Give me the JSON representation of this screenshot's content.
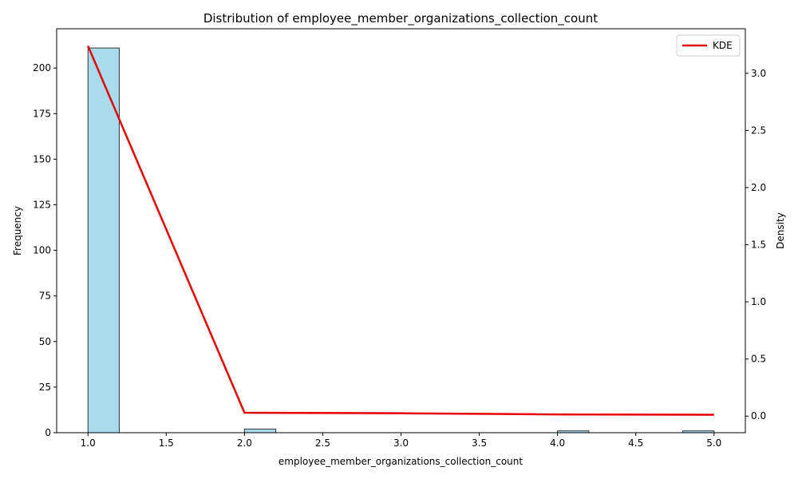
{
  "chart_data": {
    "type": "bar",
    "title": "Distribution of employee_member_organizations_collection_count",
    "xlabel": "employee_member_organizations_collection_count",
    "ylabel": "Frequency",
    "y2label": "Density",
    "xlim": [
      0.8,
      5.2
    ],
    "ylim": [
      0,
      221.55
    ],
    "y2lim": [
      -0.145,
      3.39
    ],
    "x_ticks": [
      1.0,
      1.5,
      2.0,
      2.5,
      3.0,
      3.5,
      4.0,
      4.5,
      5.0
    ],
    "x_tick_labels": [
      "1.0",
      "1.5",
      "2.0",
      "2.5",
      "3.0",
      "3.5",
      "4.0",
      "4.5",
      "5.0"
    ],
    "y_ticks": [
      0,
      25,
      50,
      75,
      100,
      125,
      150,
      175,
      200
    ],
    "y_tick_labels": [
      "0",
      "25",
      "50",
      "75",
      "100",
      "125",
      "150",
      "175",
      "200"
    ],
    "y2_ticks": [
      0.0,
      0.5,
      1.0,
      1.5,
      2.0,
      2.5,
      3.0
    ],
    "y2_tick_labels": [
      "0.0",
      "0.5",
      "1.0",
      "1.5",
      "2.0",
      "2.5",
      "3.0"
    ],
    "histogram": {
      "bin_width": 0.2,
      "bins": [
        {
          "start": 1.0,
          "count": 211
        },
        {
          "start": 2.0,
          "count": 2
        },
        {
          "start": 4.0,
          "count": 1
        },
        {
          "start": 4.8,
          "count": 1
        }
      ],
      "color": "#a8dcec",
      "edge_color": "#333333"
    },
    "series": [
      {
        "name": "KDE",
        "type": "line",
        "axis": "right",
        "color": "#e60000",
        "x": [
          1.0,
          2.0,
          3.0,
          4.0,
          5.0
        ],
        "y": [
          3.24,
          0.03,
          0.025,
          0.015,
          0.012
        ]
      }
    ],
    "legend": {
      "position": "top-right",
      "entries": [
        "KDE"
      ]
    },
    "grid": false
  }
}
